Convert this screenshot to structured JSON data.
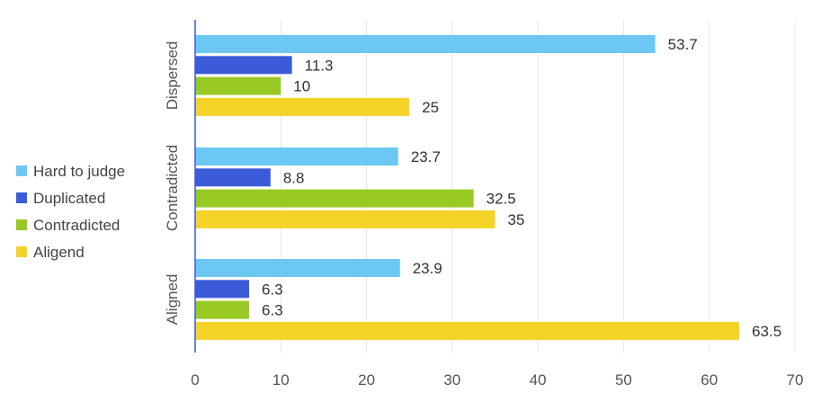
{
  "chart_data": {
    "type": "bar",
    "orientation": "horizontal",
    "categories": [
      "Dispersed",
      "Contradicted",
      "Aligned"
    ],
    "series": [
      {
        "name": "Hard to judge",
        "color": "#6cc8f3",
        "values": [
          53.7,
          23.7,
          23.9
        ]
      },
      {
        "name": "Duplicated",
        "color": "#3b5bd8",
        "values": [
          11.3,
          8.8,
          6.3
        ]
      },
      {
        "name": "Contradicted",
        "color": "#99c925",
        "values": [
          10,
          32.5,
          6.3
        ]
      },
      {
        "name": "Aligend",
        "color": "#f5d327",
        "values": [
          25,
          35,
          63.5
        ]
      }
    ],
    "xlim": [
      0,
      70
    ],
    "xticks": [
      "0",
      "10",
      "20",
      "30",
      "40",
      "50",
      "60",
      "70"
    ],
    "grid": true,
    "legend_position": "left",
    "data_labels": [
      [
        "53.7",
        "11.3",
        "10",
        "25"
      ],
      [
        "23.7",
        "8.8",
        "32.5",
        "35"
      ],
      [
        "23.9",
        "6.3",
        "6.3",
        "63.5"
      ]
    ]
  }
}
